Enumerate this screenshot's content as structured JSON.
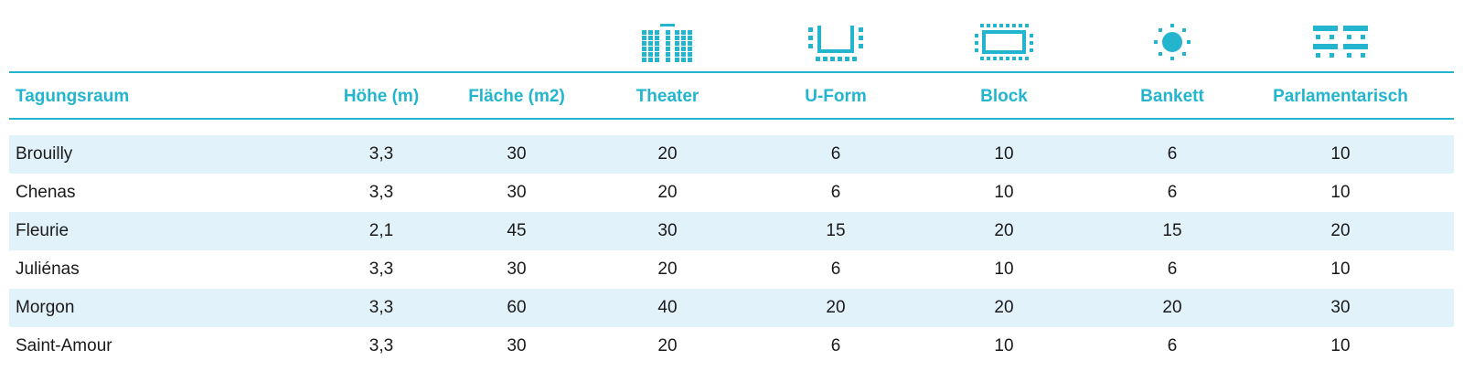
{
  "columns": [
    {
      "key": "room",
      "label": "Tagungsraum",
      "icon": null
    },
    {
      "key": "height",
      "label": "Höhe (m)",
      "icon": null
    },
    {
      "key": "area",
      "label": "Fläche (m2)",
      "icon": null
    },
    {
      "key": "theater",
      "label": "Theater",
      "icon": "theater-seating-icon"
    },
    {
      "key": "uform",
      "label": "U-Form",
      "icon": "u-shape-seating-icon"
    },
    {
      "key": "block",
      "label": "Block",
      "icon": "block-seating-icon"
    },
    {
      "key": "bankett",
      "label": "Bankett",
      "icon": "banquet-seating-icon"
    },
    {
      "key": "parl",
      "label": "Parlamentarisch",
      "icon": "parliamentary-seating-icon"
    }
  ],
  "rows": [
    [
      "Brouilly",
      "3,3",
      "30",
      "20",
      "6",
      "10",
      "6",
      "10"
    ],
    [
      "Chenas",
      "3,3",
      "30",
      "20",
      "6",
      "10",
      "6",
      "10"
    ],
    [
      "Fleurie",
      "2,1",
      "45",
      "30",
      "15",
      "20",
      "15",
      "20"
    ],
    [
      "Juliénas",
      "3,3",
      "30",
      "20",
      "6",
      "10",
      "6",
      "10"
    ],
    [
      "Morgon",
      "3,3",
      "60",
      "40",
      "20",
      "20",
      "20",
      "30"
    ],
    [
      "Saint-Amour",
      "3,3",
      "30",
      "20",
      "6",
      "10",
      "6",
      "10"
    ]
  ],
  "colors": {
    "accent": "#23b5ce",
    "row_shade": "#e2f2fa",
    "text": "#1a1a1a"
  }
}
